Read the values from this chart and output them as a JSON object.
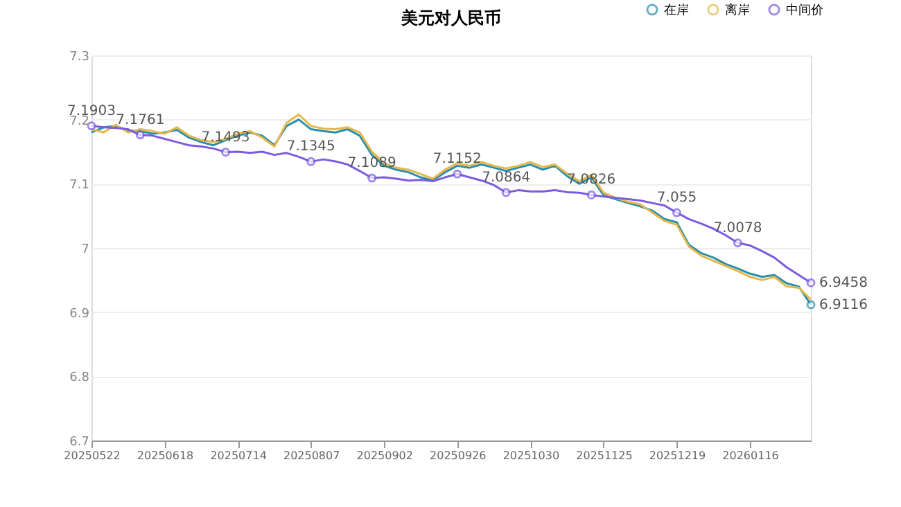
{
  "chart_data": {
    "type": "line",
    "title": "美元对人民币",
    "categories": [
      "20250522",
      null,
      null,
      null,
      null,
      null,
      "20250618",
      null,
      null,
      null,
      null,
      null,
      "20250714",
      null,
      null,
      null,
      null,
      null,
      "20250807",
      null,
      null,
      null,
      null,
      null,
      "20250902",
      null,
      null,
      null,
      null,
      null,
      "20250926",
      null,
      null,
      null,
      null,
      null,
      "20251030",
      null,
      null,
      null,
      null,
      null,
      "20251125",
      null,
      null,
      null,
      null,
      null,
      "20251219",
      null,
      null,
      null,
      null,
      null,
      "20260116",
      null,
      null,
      null,
      null,
      null
    ],
    "series": [
      {
        "name": "在岸",
        "color": "#2a8faa",
        "values": [
          7.18,
          7.188,
          7.19,
          7.183,
          7.182,
          7.178,
          7.18,
          7.184,
          7.172,
          7.165,
          7.16,
          7.168,
          7.175,
          7.18,
          7.175,
          7.16,
          7.19,
          7.2,
          7.185,
          7.182,
          7.18,
          7.185,
          7.175,
          7.145,
          7.128,
          7.122,
          7.118,
          7.11,
          7.105,
          7.118,
          7.128,
          7.125,
          7.13,
          7.125,
          7.12,
          7.125,
          7.13,
          7.122,
          7.128,
          7.112,
          7.1,
          7.11,
          7.082,
          7.076,
          7.07,
          7.065,
          7.058,
          7.045,
          7.04,
          7.005,
          6.992,
          6.985,
          6.975,
          6.968,
          6.96,
          6.955,
          6.958,
          6.945,
          6.94,
          6.9116
        ],
        "value_labels": [
          null,
          null,
          null,
          null,
          null,
          null,
          null,
          null,
          null,
          null,
          null,
          null,
          null,
          null,
          null,
          null,
          null,
          null,
          null,
          null,
          null,
          null,
          null,
          null,
          null,
          null,
          null,
          null,
          null,
          null,
          null,
          null,
          null,
          null,
          null,
          null,
          null,
          null,
          null,
          null,
          null,
          null,
          null,
          null,
          null,
          null,
          null,
          null,
          null,
          null,
          null,
          null,
          null,
          null,
          null,
          null,
          null,
          null,
          null,
          "6.9116"
        ]
      },
      {
        "name": "离岸",
        "color": "#e6b84c",
        "values": [
          7.185,
          7.18,
          7.192,
          7.18,
          7.185,
          7.182,
          7.178,
          7.188,
          7.175,
          7.168,
          7.165,
          7.17,
          7.178,
          7.182,
          7.172,
          7.158,
          7.195,
          7.208,
          7.19,
          7.186,
          7.185,
          7.188,
          7.18,
          7.15,
          7.132,
          7.125,
          7.122,
          7.115,
          7.108,
          7.122,
          7.132,
          7.128,
          7.134,
          7.128,
          7.124,
          7.128,
          7.134,
          7.126,
          7.13,
          7.116,
          7.104,
          7.114,
          7.086,
          7.078,
          7.072,
          7.068,
          7.055,
          7.042,
          7.036,
          7.002,
          6.988,
          6.98,
          6.972,
          6.964,
          6.955,
          6.95,
          6.955,
          6.94,
          6.938,
          6.92
        ]
      },
      {
        "name": "中间价",
        "color": "#7b5ce0",
        "values": [
          7.1903,
          7.188,
          7.187,
          7.185,
          7.1761,
          7.175,
          7.17,
          7.165,
          7.16,
          7.158,
          7.155,
          7.1493,
          7.15,
          7.148,
          7.15,
          7.145,
          7.148,
          7.142,
          7.1345,
          7.138,
          7.135,
          7.13,
          7.12,
          7.1089,
          7.11,
          7.108,
          7.105,
          7.106,
          7.104,
          7.11,
          7.1152,
          7.11,
          7.105,
          7.098,
          7.0864,
          7.09,
          7.088,
          7.088,
          7.09,
          7.087,
          7.086,
          7.0826,
          7.08,
          7.078,
          7.076,
          7.074,
          7.07,
          7.066,
          7.055,
          7.045,
          7.038,
          7.03,
          7.02,
          7.0078,
          7.004,
          6.995,
          6.985,
          6.97,
          6.958,
          6.9458
        ],
        "value_labels": [
          "7.1903",
          null,
          null,
          null,
          "7.1761",
          null,
          null,
          null,
          null,
          null,
          null,
          "7.1493",
          null,
          null,
          null,
          null,
          null,
          null,
          "7.1345",
          null,
          null,
          null,
          null,
          "7.1089",
          null,
          null,
          null,
          null,
          null,
          null,
          "7.1152",
          null,
          null,
          null,
          "7.0864",
          null,
          null,
          null,
          null,
          null,
          null,
          "7.0826",
          null,
          null,
          null,
          null,
          null,
          null,
          "7.055",
          null,
          null,
          null,
          null,
          "7.0078",
          null,
          null,
          null,
          null,
          null,
          "6.9458"
        ]
      }
    ],
    "ylim": [
      6.7,
      7.3
    ],
    "yticks": [
      6.7,
      6.8,
      6.9,
      7,
      7.1,
      7.2,
      7.3
    ],
    "grid": "y",
    "legend": "top right"
  }
}
